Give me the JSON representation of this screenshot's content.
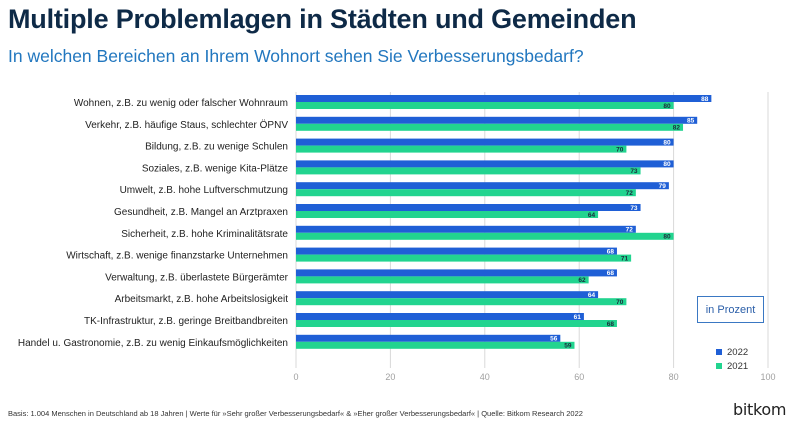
{
  "chart_data": {
    "type": "bar",
    "orientation": "horizontal",
    "title": "Multiple Problemlagen in Städten und Gemeinden",
    "subtitle": "In welchen Bereichen an Ihrem Wohnort sehen Sie Verbesserungsbedarf?",
    "categories": [
      "Wohnen, z.B. zu wenig oder falscher Wohnraum",
      "Verkehr, z.B. häufige Staus, schlechter ÖPNV",
      "Bildung, z.B. zu wenige Schulen",
      "Soziales, z.B. wenige Kita-Plätze",
      "Umwelt, z.B. hohe Luftverschmutzung",
      "Gesundheit, z.B. Mangel an Arztpraxen",
      "Sicherheit, z.B. hohe Kriminalitätsrate",
      "Wirtschaft, z.B. wenige finanzstarke Unternehmen",
      "Verwaltung, z.B. überlastete Bürgerämter",
      "Arbeitsmarkt, z.B. hohe Arbeitslosigkeit",
      "TK-Infrastruktur, z.B. geringe Breitbandbreiten",
      "Handel u. Gastronomie, z.B. zu wenig Einkaufsmöglichkeiten"
    ],
    "series": [
      {
        "name": "2022",
        "color": "#1f5fd6",
        "values": [
          88,
          85,
          80,
          80,
          79,
          73,
          72,
          68,
          68,
          64,
          61,
          56
        ]
      },
      {
        "name": "2021",
        "color": "#22d48f",
        "values": [
          80,
          82,
          70,
          73,
          72,
          64,
          80,
          71,
          62,
          70,
          68,
          59
        ]
      }
    ],
    "xlim": [
      0,
      100
    ],
    "xticks": [
      "0",
      "20",
      "40",
      "60",
      "80",
      "100"
    ],
    "grid": true,
    "unit_label": "in Prozent",
    "legend": "bottom-right"
  },
  "footnote": "Basis: 1.004 Menschen in Deutschland ab 18 Jahren | Werte für »Sehr großer Verbesserungsbedarf« & »Eher großer Verbesserungsbedarf« | Quelle: Bitkom Research 2022",
  "logo_text": "bitkom",
  "colors": {
    "title": "#0e2a47",
    "subtitle": "#2277bf",
    "grid": "#d9d9d9",
    "axis_text": "#a0a0a0"
  }
}
